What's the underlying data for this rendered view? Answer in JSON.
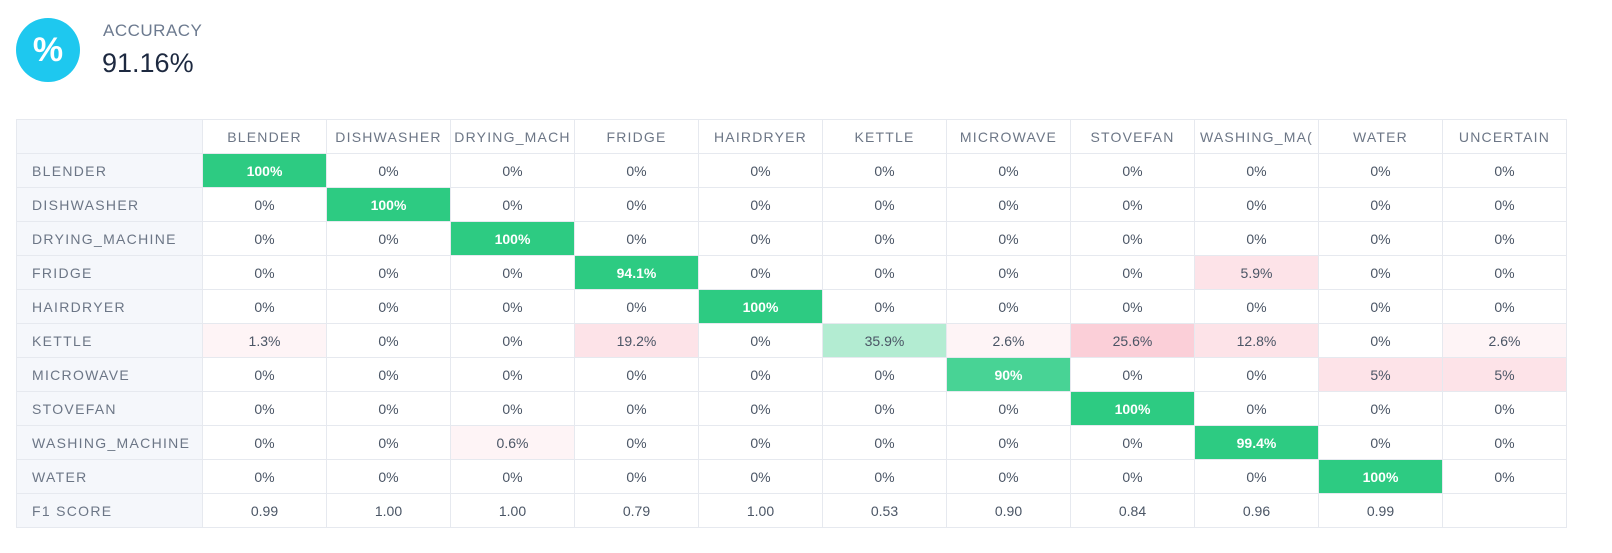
{
  "header": {
    "icon": "percent-icon",
    "icon_glyph": "%",
    "label": "ACCURACY",
    "value": "91.16%"
  },
  "colors": {
    "icon_bg": "#1ec8ef",
    "correct_strong": "#2dcb82",
    "correct_medium": "#48d395",
    "correct_light": "#b3ecd2",
    "error_strong": "#fbcfd8",
    "error_medium": "#fde3e8",
    "error_light": "#fef4f6"
  },
  "chart_data": {
    "type": "heatmap",
    "title": "",
    "columns": [
      "BLENDER",
      "DISHWASHER",
      "DRYING_MACH",
      "FRIDGE",
      "HAIRDRYER",
      "KETTLE",
      "MICROWAVE",
      "STOVEFAN",
      "WASHING_MA(",
      "WATER",
      "UNCERTAIN"
    ],
    "rows": [
      {
        "label": "BLENDER",
        "values": [
          100,
          0,
          0,
          0,
          0,
          0,
          0,
          0,
          0,
          0,
          0
        ],
        "display": [
          "100%",
          "0%",
          "0%",
          "0%",
          "0%",
          "0%",
          "0%",
          "0%",
          "0%",
          "0%",
          "0%"
        ]
      },
      {
        "label": "DISHWASHER",
        "values": [
          0,
          100,
          0,
          0,
          0,
          0,
          0,
          0,
          0,
          0,
          0
        ],
        "display": [
          "0%",
          "100%",
          "0%",
          "0%",
          "0%",
          "0%",
          "0%",
          "0%",
          "0%",
          "0%",
          "0%"
        ]
      },
      {
        "label": "DRYING_MACHINE",
        "values": [
          0,
          0,
          100,
          0,
          0,
          0,
          0,
          0,
          0,
          0,
          0
        ],
        "display": [
          "0%",
          "0%",
          "100%",
          "0%",
          "0%",
          "0%",
          "0%",
          "0%",
          "0%",
          "0%",
          "0%"
        ]
      },
      {
        "label": "FRIDGE",
        "values": [
          0,
          0,
          0,
          94.1,
          0,
          0,
          0,
          0,
          5.9,
          0,
          0
        ],
        "display": [
          "0%",
          "0%",
          "0%",
          "94.1%",
          "0%",
          "0%",
          "0%",
          "0%",
          "5.9%",
          "0%",
          "0%"
        ]
      },
      {
        "label": "HAIRDRYER",
        "values": [
          0,
          0,
          0,
          0,
          100,
          0,
          0,
          0,
          0,
          0,
          0
        ],
        "display": [
          "0%",
          "0%",
          "0%",
          "0%",
          "100%",
          "0%",
          "0%",
          "0%",
          "0%",
          "0%",
          "0%"
        ]
      },
      {
        "label": "KETTLE",
        "values": [
          1.3,
          0,
          0,
          19.2,
          0,
          35.9,
          2.6,
          25.6,
          12.8,
          0,
          2.6
        ],
        "display": [
          "1.3%",
          "0%",
          "0%",
          "19.2%",
          "0%",
          "35.9%",
          "2.6%",
          "25.6%",
          "12.8%",
          "0%",
          "2.6%"
        ]
      },
      {
        "label": "MICROWAVE",
        "values": [
          0,
          0,
          0,
          0,
          0,
          0,
          90,
          0,
          0,
          5,
          5
        ],
        "display": [
          "0%",
          "0%",
          "0%",
          "0%",
          "0%",
          "0%",
          "90%",
          "0%",
          "0%",
          "5%",
          "5%"
        ]
      },
      {
        "label": "STOVEFAN",
        "values": [
          0,
          0,
          0,
          0,
          0,
          0,
          0,
          100,
          0,
          0,
          0
        ],
        "display": [
          "0%",
          "0%",
          "0%",
          "0%",
          "0%",
          "0%",
          "0%",
          "100%",
          "0%",
          "0%",
          "0%"
        ]
      },
      {
        "label": "WASHING_MACHINE",
        "values": [
          0,
          0,
          0.6,
          0,
          0,
          0,
          0,
          0,
          99.4,
          0,
          0
        ],
        "display": [
          "0%",
          "0%",
          "0.6%",
          "0%",
          "0%",
          "0%",
          "0%",
          "0%",
          "99.4%",
          "0%",
          "0%"
        ]
      },
      {
        "label": "WATER",
        "values": [
          0,
          0,
          0,
          0,
          0,
          0,
          0,
          0,
          0,
          100,
          0
        ],
        "display": [
          "0%",
          "0%",
          "0%",
          "0%",
          "0%",
          "0%",
          "0%",
          "0%",
          "0%",
          "100%",
          "0%"
        ]
      }
    ],
    "f1_row": {
      "label": "F1 SCORE",
      "values": [
        "0.99",
        "1.00",
        "1.00",
        "0.79",
        "1.00",
        "0.53",
        "0.90",
        "0.84",
        "0.96",
        "0.99",
        ""
      ]
    }
  }
}
